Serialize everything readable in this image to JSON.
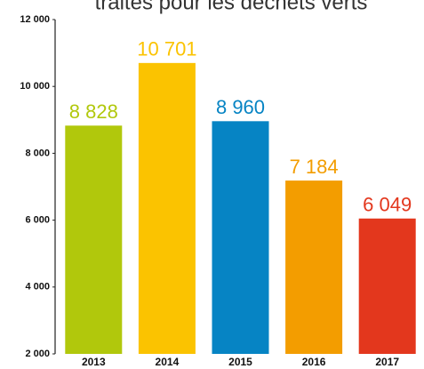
{
  "chart_data": {
    "type": "bar",
    "title": "traités pour les déchets verts",
    "categories": [
      "2013",
      "2014",
      "2015",
      "2016",
      "2017"
    ],
    "values": [
      8828,
      10701,
      8960,
      7184,
      6049
    ],
    "value_labels": [
      "8 828",
      "10 701",
      "8 960",
      "7 184",
      "6 049"
    ],
    "colors": [
      "#b1c80c",
      "#fbc300",
      "#0684c4",
      "#f39d00",
      "#e3371d"
    ],
    "ylim": [
      2000,
      12000
    ],
    "yticks": [
      {
        "value": 2000,
        "label": "2 000"
      },
      {
        "value": 4000,
        "label": "4 000"
      },
      {
        "value": 6000,
        "label": "6 000"
      },
      {
        "value": 8000,
        "label": "8 000"
      },
      {
        "value": 10000,
        "label": "10 000"
      },
      {
        "value": 12000,
        "label": "12 000"
      }
    ],
    "grid": false
  }
}
